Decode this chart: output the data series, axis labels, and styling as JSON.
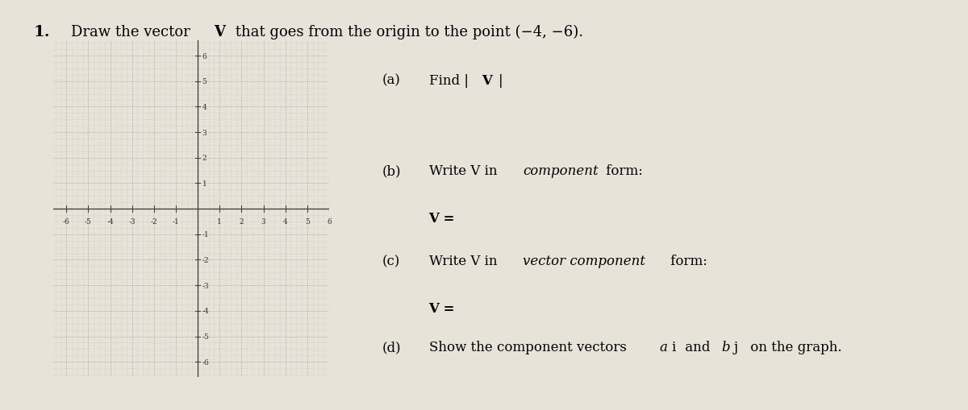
{
  "paper_color": "#e8e3d8",
  "graph_xlim": [
    -6.6,
    6.0
  ],
  "graph_ylim": [
    -6.6,
    6.6
  ],
  "major_ticks_x": [
    -6,
    -5,
    -4,
    -3,
    -2,
    -1,
    1,
    2,
    3,
    4,
    5,
    6
  ],
  "major_ticks_y": [
    -6,
    -5,
    -4,
    -3,
    -2,
    -1,
    1,
    2,
    3,
    4,
    5,
    6
  ],
  "minor_per_major": 4,
  "grid_major_color": "#999999",
  "grid_minor_color": "#bbbbbb",
  "axis_color": "#444444",
  "tick_label_color": "#333333",
  "font_size_ticks": 6.5,
  "font_size_title": 13,
  "font_size_body": 12,
  "font_size_num": 14,
  "title_normal1": "Draw the vector ",
  "title_bold": "V",
  "title_normal2": " that goes from the origin to the point (−4, −6).",
  "qa_label": "(a)",
  "qa_text1": "Find |",
  "qa_bold": "V",
  "qa_text2": "|",
  "qb_label": "(b)",
  "qb_text1": "Write V in ",
  "qb_italic": "component",
  "qb_text2": " form:",
  "qb_answer": "V =",
  "qc_label": "(c)",
  "qc_text1": "Write V in ",
  "qc_italic": "vector component",
  "qc_text2": " form:",
  "qc_answer": "V =",
  "qd_label": "(d)",
  "qd_text1": "Show the component vectors ",
  "qd_ai_i": "a",
  "qd_ai_n": "i",
  "qd_and": " and ",
  "qd_bj_i": "b",
  "qd_bj_n": "j",
  "qd_text2": " on the graph."
}
